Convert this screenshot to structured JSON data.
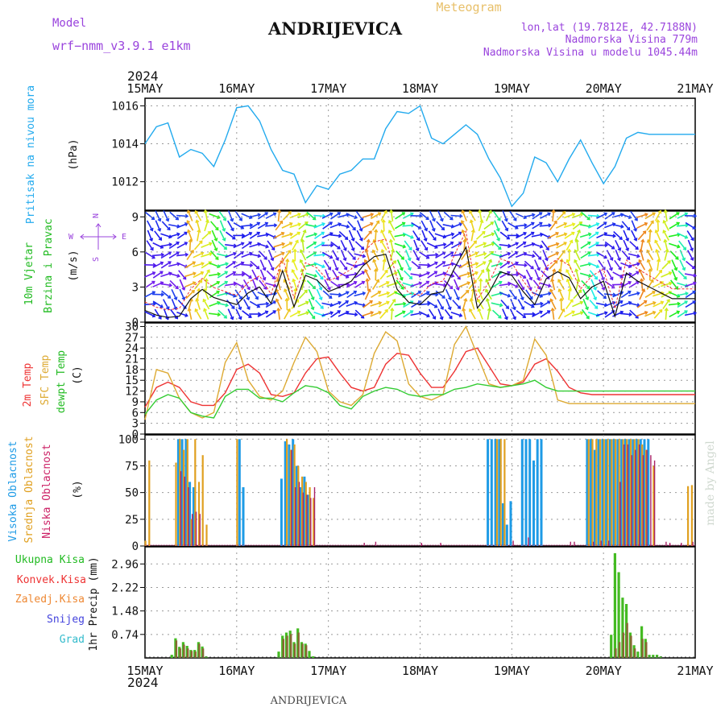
{
  "header": {
    "model_label": "Model",
    "model_name": "wrf−nmm_v3.9.1  e1km",
    "station": "ANDRIJEVICA",
    "product": "Meteogram",
    "lonlat": "lon,lat (19.7812E, 42.7188N)",
    "elevation": "Nadmorska Visina 779m",
    "model_elevation": "Nadmorska Visina u modelu 1045.44m",
    "footer_station": "ANDRIJEVICA",
    "credit": "made by Angel"
  },
  "time_axis": {
    "year": "2024",
    "labels": [
      "15MAY",
      "16MAY",
      "17MAY",
      "18MAY",
      "19MAY",
      "20MAY",
      "21MAY"
    ],
    "start_day": 15,
    "end_day": 21,
    "hours_per_day": 24
  },
  "colors": {
    "pressure": "#22aaee",
    "temp2m": "#ee3333",
    "sfc": "#ddaa33",
    "dewpt": "#33cc33",
    "wind_speed": "#111111",
    "wind_gust": "#ee3333",
    "high_cloud": "#1e9be6",
    "mid_cloud": "#e0a020",
    "low_cloud": "#aa2266",
    "total_precip": "#44bb22",
    "conv_precip": "#886633",
    "frozen_precip": "#ee8833",
    "snow": "#4444dd",
    "hail": "#33bbcc"
  },
  "panels": {
    "pressure": {
      "ylabel_name": "Pritisak na nivou mora",
      "ylabel_unit": "(hPa)",
      "ticks": [
        "1016",
        "1014",
        "1012"
      ]
    },
    "wind": {
      "ylabel_name_1": "10m Vjetar",
      "ylabel_name_2": "Brzina i Pravac",
      "ylabel_unit": "(m/s)",
      "ticks": [
        "9",
        "6",
        "3",
        "0"
      ],
      "compass_n": "N",
      "compass_w": "W",
      "compass_e": "E",
      "compass_s": "S"
    },
    "temperature": {
      "ylabel_1": "2m Temp",
      "ylabel_2": "SFC Temp",
      "ylabel_3": "dewpt Temp",
      "ylabel_unit": "(C)",
      "ticks": [
        "30",
        "27",
        "24",
        "21",
        "18",
        "15",
        "12",
        "9",
        "6",
        "3",
        "0"
      ]
    },
    "clouds": {
      "ylabel_1": "Visoka Oblacnost",
      "ylabel_2": "Srednja Oblacnost",
      "ylabel_3": "Niska  Oblacnost",
      "ylabel_unit": "(%)",
      "ticks": [
        "100",
        "75",
        "50",
        "25",
        "0"
      ]
    },
    "precip": {
      "legend_total": "Ukupna Kisa",
      "legend_conv": "Konvek.Kisa",
      "legend_frozen": "Zaledj.Kisa",
      "legend_snow": "Snijeg",
      "legend_hail": "Grad",
      "ylabel": "1hr Precip (mm)",
      "ticks": [
        "2.96",
        "2.22",
        "1.48",
        "0.74"
      ]
    }
  },
  "chart_data": [
    {
      "type": "line",
      "panel": "pressure",
      "x_unit": "hours since 15 MAY 2024 00 UTC",
      "series": [
        {
          "x": [
            0,
            3,
            6,
            9,
            12,
            15,
            18,
            21,
            24,
            27,
            30,
            33,
            36,
            39,
            42,
            45,
            48,
            51,
            54,
            57,
            60,
            63,
            66,
            69,
            72,
            75,
            78,
            81,
            84,
            87,
            90,
            93,
            96,
            99,
            102,
            105,
            108,
            111,
            114,
            117,
            120,
            123,
            126,
            129,
            132,
            135,
            138,
            141,
            144
          ],
          "y": [
            1014.0,
            1014.9,
            1015.1,
            1013.3,
            1013.7,
            1013.5,
            1012.8,
            1014.2,
            1015.9,
            1016.0,
            1015.2,
            1013.7,
            1012.6,
            1012.4,
            1010.9,
            1011.8,
            1011.6,
            1012.4,
            1012.6,
            1013.2,
            1013.2,
            1014.8,
            1015.7,
            1015.6,
            1016.0,
            1014.3,
            1014.0,
            1014.5,
            1015.0,
            1014.5,
            1013.2,
            1012.2,
            1010.7,
            1011.4,
            1013.3,
            1013.0,
            1012.0,
            1013.2,
            1014.2,
            1013.0,
            1011.9,
            1012.8,
            1014.3,
            1014.6,
            1014.5,
            1014.5,
            1014.5,
            1014.5,
            1014.5
          ],
          "ylim": [
            1010.5,
            1016.4
          ]
        }
      ]
    },
    {
      "type": "line",
      "panel": "wind",
      "x_unit": "hours since 15 MAY 2024 00 UTC",
      "series": [
        {
          "x": [
            0,
            3,
            6,
            9,
            12,
            15,
            18,
            21,
            24,
            27,
            30,
            33,
            36,
            39,
            42,
            45,
            48,
            51,
            54,
            57,
            60,
            63,
            66,
            69,
            72,
            75,
            78,
            81,
            84,
            87,
            90,
            93,
            96,
            99,
            102,
            105,
            108,
            111,
            114,
            117,
            120,
            123,
            126,
            129,
            132,
            135,
            138,
            141,
            144
          ],
          "y": [
            1.0,
            0.6,
            0.4,
            0.5,
            2.0,
            2.8,
            2.1,
            1.8,
            1.5,
            2.5,
            3.0,
            1.6,
            4.4,
            1.3,
            4.0,
            3.6,
            2.6,
            3.0,
            3.5,
            4.8,
            5.6,
            5.8,
            2.8,
            1.7,
            1.5,
            2.4,
            2.6,
            4.6,
            6.4,
            1.2,
            2.5,
            4.3,
            4.0,
            2.6,
            1.5,
            3.7,
            4.3,
            3.8,
            2.0,
            3.0,
            3.5,
            0.5,
            4.2,
            3.5,
            3.0,
            2.5,
            2.0,
            2.0,
            2.0
          ],
          "ylim": [
            0,
            9.5
          ]
        }
      ]
    },
    {
      "type": "line",
      "panel": "temperature",
      "x_unit": "hours since 15 MAY 2024 00 UTC",
      "ylim": [
        0,
        31
      ],
      "series": [
        {
          "key": "temp2m",
          "x": [
            0,
            3,
            6,
            9,
            12,
            15,
            18,
            21,
            24,
            27,
            30,
            33,
            36,
            39,
            42,
            45,
            48,
            51,
            54,
            57,
            60,
            63,
            66,
            69,
            72,
            75,
            78,
            81,
            84,
            87,
            90,
            93,
            96,
            99,
            102,
            105,
            108,
            111,
            114,
            117,
            120,
            123,
            126,
            129,
            132,
            135,
            138,
            141,
            144
          ],
          "y": [
            7.5,
            13.0,
            14.5,
            13.0,
            9.0,
            8.0,
            8.0,
            11.5,
            18.0,
            19.5,
            17.0,
            11.0,
            10.5,
            11.5,
            17.0,
            21.0,
            21.5,
            17.0,
            13.0,
            12.0,
            13.0,
            19.5,
            22.5,
            22.0,
            17.0,
            13.0,
            13.0,
            17.5,
            23.0,
            24.0,
            19.0,
            14.0,
            13.5,
            14.5,
            19.5,
            21.0,
            17.5,
            13.0,
            11.5,
            11.0,
            11.0,
            11.0,
            11.0,
            11.0,
            11.0,
            11.0,
            11.0,
            11.0,
            11.0
          ]
        },
        {
          "key": "sfc",
          "x": [
            0,
            3,
            6,
            9,
            12,
            15,
            18,
            21,
            24,
            27,
            30,
            33,
            36,
            39,
            42,
            45,
            48,
            51,
            54,
            57,
            60,
            63,
            66,
            69,
            72,
            75,
            78,
            81,
            84,
            87,
            90,
            93,
            96,
            99,
            102,
            105,
            108,
            111,
            114,
            117,
            120,
            123,
            126,
            129,
            132,
            135,
            138,
            141,
            144
          ],
          "y": [
            4.0,
            18.0,
            17.0,
            10.0,
            6.0,
            4.5,
            6.0,
            20.0,
            25.5,
            15.0,
            10.5,
            9.5,
            12.0,
            20.0,
            27.0,
            23.0,
            12.0,
            9.0,
            8.0,
            11.0,
            22.5,
            28.5,
            26.0,
            14.0,
            10.5,
            9.5,
            11.0,
            25.0,
            30.0,
            22.0,
            14.0,
            13.0,
            13.5,
            15.0,
            26.5,
            22.0,
            9.5,
            8.5,
            8.5,
            8.5,
            8.5,
            8.5,
            8.5,
            8.5,
            8.5,
            8.5,
            8.5,
            8.5,
            8.5
          ]
        },
        {
          "key": "dewpt",
          "x": [
            0,
            3,
            6,
            9,
            12,
            15,
            18,
            21,
            24,
            27,
            30,
            33,
            36,
            39,
            42,
            45,
            48,
            51,
            54,
            57,
            60,
            63,
            66,
            69,
            72,
            75,
            78,
            81,
            84,
            87,
            90,
            93,
            96,
            99,
            102,
            105,
            108,
            111,
            114,
            117,
            120,
            123,
            126,
            129,
            132,
            135,
            138,
            141,
            144
          ],
          "y": [
            5.5,
            9.5,
            11.0,
            10.0,
            6.0,
            5.0,
            4.5,
            10.5,
            12.5,
            12.5,
            10.0,
            10.0,
            9.0,
            11.5,
            13.5,
            13.0,
            11.5,
            8.0,
            7.0,
            10.5,
            12.0,
            13.0,
            12.5,
            11.0,
            10.5,
            11.0,
            11.0,
            12.5,
            13.0,
            14.0,
            13.5,
            13.0,
            13.5,
            14.0,
            15.0,
            13.0,
            12.0,
            12.0,
            12.0,
            12.0,
            12.0,
            12.0,
            12.0,
            12.0,
            12.0,
            12.0,
            12.0,
            12.0,
            12.0
          ]
        }
      ]
    },
    {
      "type": "bar",
      "panel": "clouds",
      "x_unit": "hours since 15 MAY 2024 00 UTC",
      "ylim": [
        0,
        100
      ],
      "series": [
        {
          "key": "high",
          "x": [
            9,
            10,
            11,
            12,
            13,
            25,
            26,
            36,
            37,
            38,
            39,
            40,
            41,
            42,
            43,
            90,
            91,
            92,
            93,
            94,
            95,
            96,
            99,
            100,
            101,
            102,
            103,
            104,
            116,
            117,
            118,
            119,
            120,
            121,
            122,
            123,
            124,
            125,
            126,
            127,
            128,
            129,
            130,
            131,
            132
          ],
          "y": [
            100,
            100,
            100,
            60,
            55,
            100,
            55,
            63,
            98,
            95,
            100,
            75,
            55,
            65,
            48,
            100,
            100,
            100,
            100,
            40,
            20,
            42,
            100,
            100,
            100,
            80,
            100,
            100,
            100,
            100,
            90,
            100,
            100,
            100,
            100,
            100,
            100,
            100,
            100,
            100,
            100,
            100,
            100,
            100,
            100
          ]
        },
        {
          "key": "mid",
          "x": [
            0,
            1,
            8,
            9,
            10,
            11,
            12,
            13,
            14,
            15,
            16,
            24,
            37,
            38,
            39,
            40,
            41,
            42,
            43,
            44,
            92,
            93,
            94,
            116,
            117,
            118,
            119,
            120,
            121,
            122,
            123,
            124,
            125,
            126,
            127,
            128,
            129,
            130,
            131,
            133,
            142,
            143
          ],
          "y": [
            5,
            80,
            78,
            100,
            90,
            100,
            25,
            100,
            60,
            85,
            20,
            100,
            100,
            90,
            95,
            75,
            65,
            60,
            55,
            45,
            100,
            100,
            100,
            100,
            100,
            100,
            100,
            100,
            100,
            100,
            100,
            100,
            100,
            100,
            100,
            100,
            100,
            95,
            90,
            75,
            56,
            57
          ]
        },
        {
          "key": "low",
          "x": [
            9,
            10,
            11,
            12,
            13,
            14,
            38,
            39,
            40,
            41,
            42,
            43,
            44,
            57,
            60,
            72,
            77,
            96,
            100,
            111,
            112,
            117,
            119,
            121,
            124,
            125,
            126,
            127,
            128,
            129,
            130,
            131,
            132,
            133,
            136,
            137,
            140,
            143
          ],
          "y": [
            70,
            65,
            55,
            30,
            32,
            30,
            90,
            55,
            60,
            50,
            48,
            45,
            55,
            3,
            4,
            3,
            3,
            5,
            8,
            4,
            4,
            4,
            5,
            5,
            60,
            95,
            95,
            85,
            90,
            95,
            85,
            90,
            85,
            80,
            4,
            3,
            3,
            4
          ]
        }
      ]
    },
    {
      "type": "bar",
      "panel": "precip",
      "x_unit": "hours since 15 MAY 2024 00 UTC",
      "ylim": [
        0,
        3.5
      ],
      "series": [
        {
          "key": "total",
          "x": [
            7,
            8,
            9,
            10,
            11,
            12,
            13,
            14,
            15,
            16,
            35,
            36,
            37,
            38,
            39,
            40,
            41,
            42,
            43,
            44,
            122,
            123,
            124,
            125,
            126,
            127,
            128,
            129,
            130,
            131,
            132,
            133,
            134,
            135
          ],
          "y": [
            0.1,
            0.62,
            0.35,
            0.5,
            0.38,
            0.25,
            0.25,
            0.5,
            0.36,
            0.05,
            0.2,
            0.7,
            0.8,
            0.86,
            0.5,
            0.93,
            0.5,
            0.45,
            0.22,
            0.05,
            0.73,
            3.3,
            2.7,
            1.9,
            1.7,
            0.8,
            0.4,
            0.2,
            1.0,
            0.6,
            0.1,
            0.1,
            0.1,
            0.05
          ]
        },
        {
          "key": "conv",
          "x": [
            8,
            9,
            10,
            11,
            12,
            13,
            14,
            15,
            36,
            37,
            38,
            39,
            40,
            41,
            42,
            123,
            124,
            125,
            126,
            127,
            128,
            130,
            131
          ],
          "y": [
            0.55,
            0.3,
            0.42,
            0.3,
            0.22,
            0.2,
            0.45,
            0.3,
            0.6,
            0.7,
            0.75,
            0.45,
            0.8,
            0.45,
            0.4,
            0.3,
            0.5,
            0.8,
            1.1,
            0.7,
            0.3,
            0.6,
            0.5
          ]
        }
      ]
    }
  ]
}
